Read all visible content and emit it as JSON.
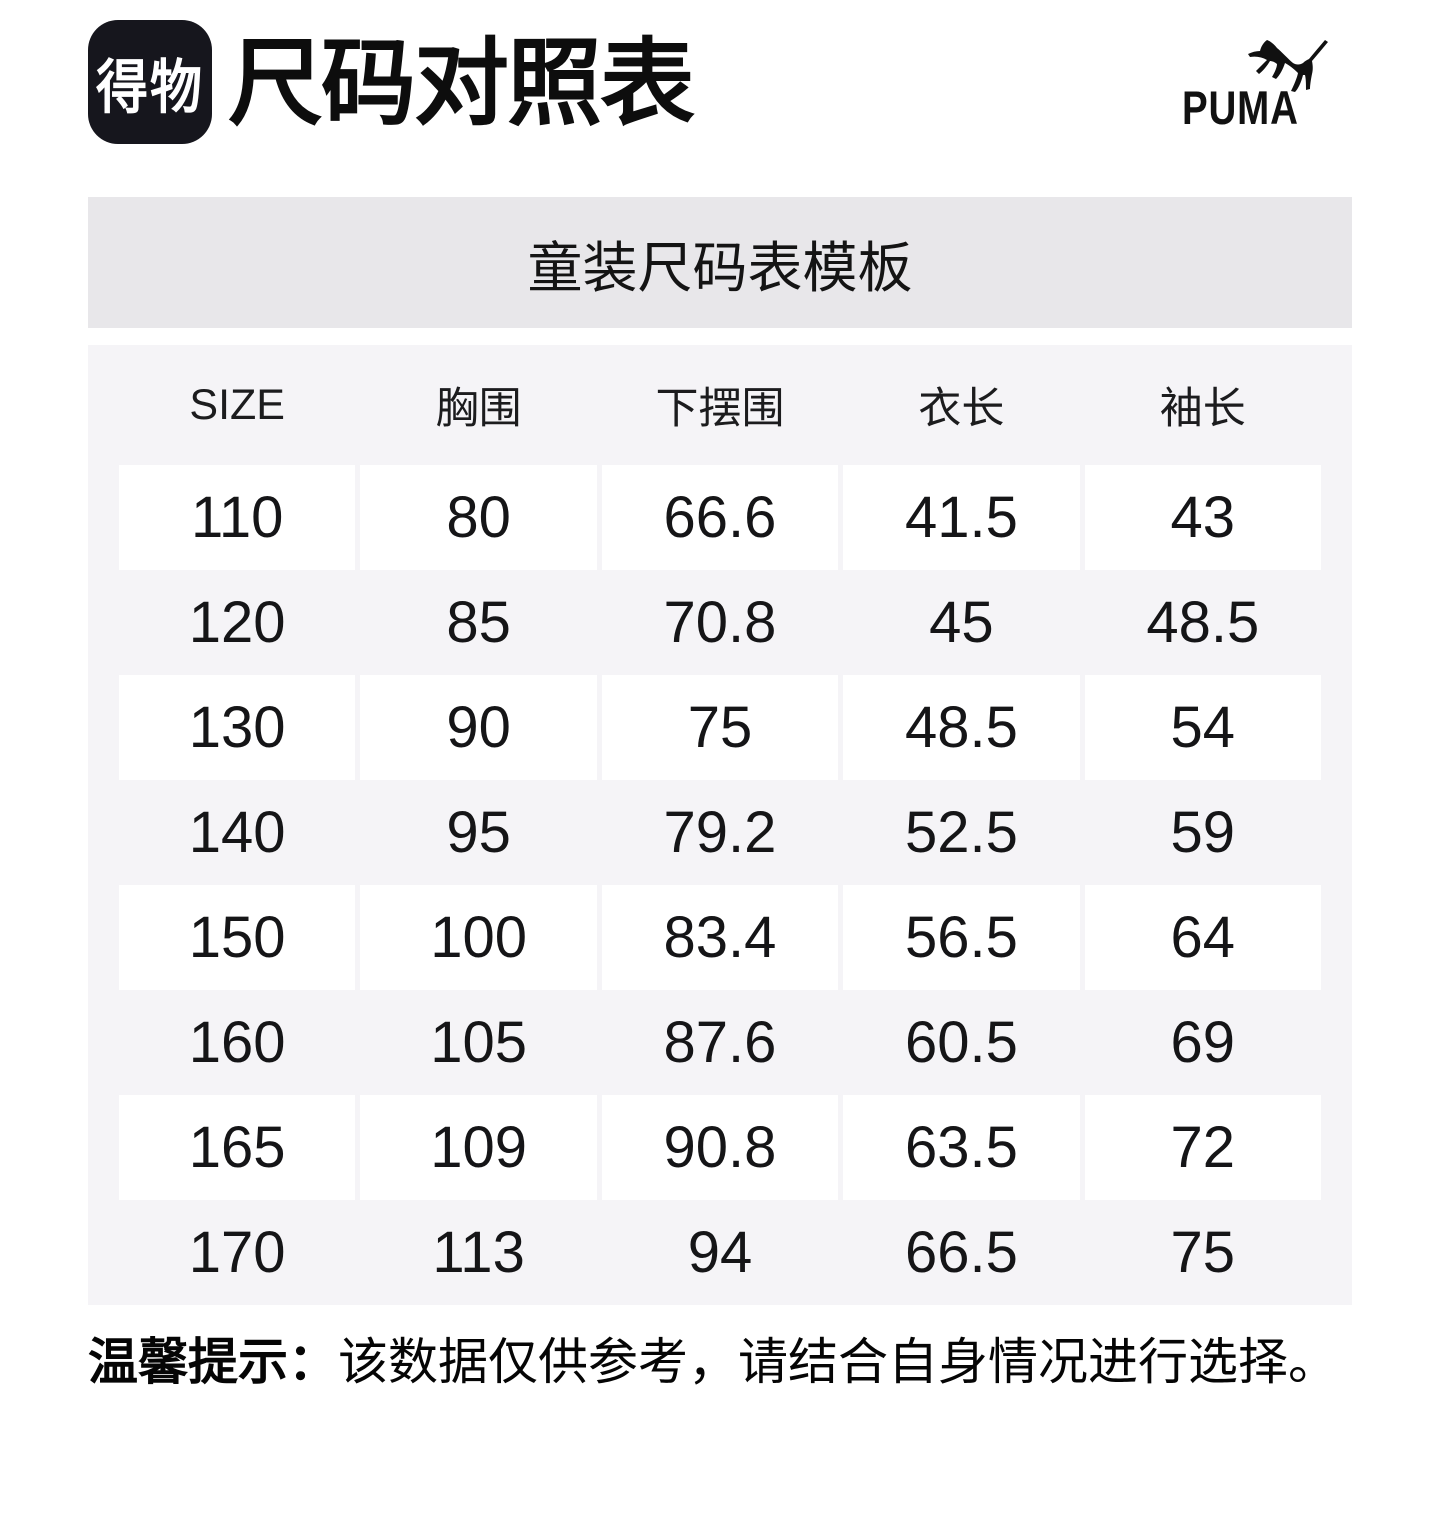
{
  "page": {
    "header": {
      "logo_text": "得物",
      "title": "尺码对照表",
      "brand_name": "PUMA"
    },
    "banner": {
      "text": "童装尺码表模板"
    },
    "table": {
      "columns": [
        "SIZE",
        "胸围",
        "下摆围",
        "衣长",
        "袖长"
      ],
      "rows": [
        [
          "110",
          "80",
          "66.6",
          "41.5",
          "43"
        ],
        [
          "120",
          "85",
          "70.8",
          "45",
          "48.5"
        ],
        [
          "130",
          "90",
          "75",
          "48.5",
          "54"
        ],
        [
          "140",
          "95",
          "79.2",
          "52.5",
          "59"
        ],
        [
          "150",
          "100",
          "83.4",
          "56.5",
          "64"
        ],
        [
          "160",
          "105",
          "87.6",
          "60.5",
          "69"
        ],
        [
          "165",
          "109",
          "90.8",
          "63.5",
          "72"
        ],
        [
          "170",
          "113",
          "94",
          "66.5",
          "75"
        ]
      ]
    },
    "note": {
      "label": "温馨提示：",
      "text": "该数据仅供参考，请结合自身情况进行选择。"
    }
  },
  "colors": {
    "banner_bg": "#e8e7ea",
    "table_bg": "#f5f4f7",
    "cell_bg": "#ffffff",
    "logo_bg": "#16161d",
    "text": "#121214"
  }
}
